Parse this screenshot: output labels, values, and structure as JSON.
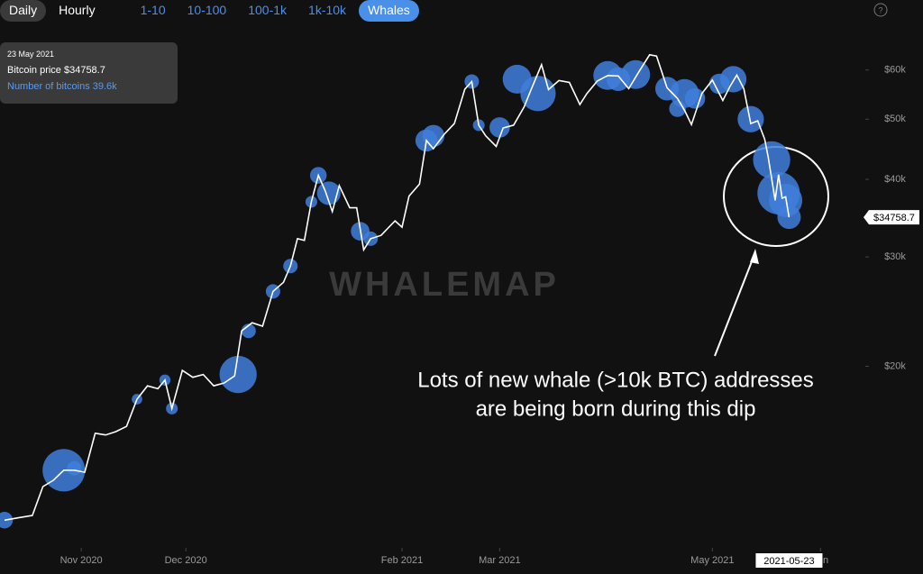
{
  "tabs": [
    {
      "label": "Daily"
    },
    {
      "label": "Hourly"
    },
    {
      "label": "1-10"
    },
    {
      "label": "10-100"
    },
    {
      "label": "100-1k"
    },
    {
      "label": "1k-10k"
    },
    {
      "label": "Whales",
      "active": true
    }
  ],
  "tooltip": {
    "date": "23 May 2021",
    "price_text": "Bitcoin price $34758.7",
    "count_text": "Number of bitcoins 39.6k"
  },
  "chart_data": {
    "type": "line",
    "watermark": "WHALEMAP",
    "annotation": [
      "Lots of new whale (>10k BTC) addresses",
      "are being born during this dip"
    ],
    "cursor_date": "2021-05-23",
    "current_price": {
      "value": 34758.7,
      "label": "$34758.7"
    },
    "log_scale": true,
    "xlim": [
      "2020-10-10",
      "2021-06-03"
    ],
    "xticks": [
      {
        "value": "2020-11-01",
        "label": "Nov 2020"
      },
      {
        "value": "2020-12-01",
        "label": "Dec 2020"
      },
      {
        "value": "2021-02-01",
        "label": "Feb 2021"
      },
      {
        "value": "2021-03-01",
        "label": "Mar 2021"
      },
      {
        "value": "2021-05-01",
        "label": "May 2021"
      },
      {
        "value": "2021-06-01",
        "label": "Jun"
      }
    ],
    "ylim": [
      10300,
      77800
    ],
    "yticks": [
      {
        "value": 20000,
        "label": "$20k"
      },
      {
        "value": 30000,
        "label": "$30k"
      },
      {
        "value": 40000,
        "label": "$40k"
      },
      {
        "value": 50000,
        "label": "$50k"
      },
      {
        "value": 60000,
        "label": "$60k"
      }
    ],
    "x": [
      "2020-10-10",
      "2020-10-14",
      "2020-10-18",
      "2020-10-21",
      "2020-10-24",
      "2020-10-27",
      "2020-10-30",
      "2020-11-02",
      "2020-11-05",
      "2020-11-08",
      "2020-11-11",
      "2020-11-14",
      "2020-11-17",
      "2020-11-20",
      "2020-11-23",
      "2020-11-25",
      "2020-11-27",
      "2020-11-30",
      "2020-12-03",
      "2020-12-06",
      "2020-12-09",
      "2020-12-12",
      "2020-12-15",
      "2020-12-17",
      "2020-12-20",
      "2020-12-23",
      "2020-12-26",
      "2020-12-29",
      "2020-12-31",
      "2021-01-02",
      "2021-01-04",
      "2021-01-06",
      "2021-01-08",
      "2021-01-10",
      "2021-01-12",
      "2021-01-14",
      "2021-01-17",
      "2021-01-19",
      "2021-01-21",
      "2021-01-23",
      "2021-01-26",
      "2021-01-28",
      "2021-01-30",
      "2021-02-01",
      "2021-02-03",
      "2021-02-06",
      "2021-02-08",
      "2021-02-10",
      "2021-02-13",
      "2021-02-16",
      "2021-02-19",
      "2021-02-21",
      "2021-02-23",
      "2021-02-25",
      "2021-02-28",
      "2021-03-02",
      "2021-03-05",
      "2021-03-08",
      "2021-03-10",
      "2021-03-13",
      "2021-03-15",
      "2021-03-18",
      "2021-03-21",
      "2021-03-24",
      "2021-03-26",
      "2021-03-29",
      "2021-04-01",
      "2021-04-04",
      "2021-04-07",
      "2021-04-10",
      "2021-04-13",
      "2021-04-15",
      "2021-04-18",
      "2021-04-21",
      "2021-04-23",
      "2021-04-25",
      "2021-04-28",
      "2021-05-01",
      "2021-05-04",
      "2021-05-06",
      "2021-05-08",
      "2021-05-10",
      "2021-05-12",
      "2021-05-14",
      "2021-05-16",
      "2021-05-17",
      "2021-05-19",
      "2021-05-20",
      "2021-05-21",
      "2021-05-22",
      "2021-05-23"
    ],
    "series": [
      {
        "color": "#ffffff",
        "values": [
          11300,
          11400,
          11500,
          12800,
          13100,
          13600,
          13600,
          13500,
          15600,
          15500,
          15700,
          16000,
          17700,
          18600,
          18400,
          19000,
          17100,
          19700,
          19200,
          19400,
          18600,
          18800,
          19300,
          22800,
          23500,
          23200,
          26400,
          27300,
          29000,
          32100,
          31900,
          36800,
          40600,
          38300,
          35500,
          39100,
          36000,
          36000,
          30800,
          32100,
          32500,
          33400,
          34300,
          33500,
          37600,
          39300,
          46200,
          44800,
          47200,
          49200,
          55900,
          57500,
          48900,
          47000,
          45200,
          48400,
          48900,
          52300,
          55800,
          61200,
          55800,
          57700,
          57300,
          52800,
          55000,
          57600,
          58800,
          58700,
          56000,
          59700,
          63500,
          63200,
          56200,
          54000,
          51700,
          49000,
          55000,
          57800,
          53600,
          56400,
          58900,
          56000,
          49200,
          49700,
          46400,
          43500,
          37000,
          40700,
          37300,
          37500,
          34758.7
        ]
      }
    ],
    "whales": {
      "color": "#3f7fdc",
      "x": [
        "2020-10-10",
        "2020-10-27",
        "2020-10-30",
        "2020-11-17",
        "2020-11-25",
        "2020-11-27",
        "2020-12-16",
        "2020-12-19",
        "2020-12-26",
        "2020-12-31",
        "2021-01-06",
        "2021-01-08",
        "2021-01-11",
        "2021-01-20",
        "2021-01-23",
        "2021-02-08",
        "2021-02-10",
        "2021-02-21",
        "2021-02-23",
        "2021-03-01",
        "2021-03-06",
        "2021-03-12",
        "2021-04-01",
        "2021-04-04",
        "2021-04-09",
        "2021-04-18",
        "2021-04-21",
        "2021-04-23",
        "2021-04-26",
        "2021-05-03",
        "2021-05-07",
        "2021-05-12",
        "2021-05-18",
        "2021-05-20",
        "2021-05-22",
        "2021-05-23"
      ],
      "values": [
        11300,
        13600,
        13700,
        17700,
        19000,
        17100,
        19400,
        22800,
        26400,
        29000,
        36800,
        40600,
        38000,
        33000,
        32100,
        46200,
        47000,
        57500,
        48900,
        48500,
        58000,
        55000,
        58800,
        58000,
        59000,
        56000,
        52000,
        55000,
        54000,
        57000,
        58000,
        50000,
        43000,
        38000,
        37000,
        34758.7
      ],
      "sizes": [
        20000,
        130000,
        15000,
        8000,
        9000,
        10000,
        100000,
        15000,
        15000,
        15000,
        10000,
        20000,
        40000,
        25000,
        15000,
        35000,
        35000,
        15000,
        10000,
        30000,
        60000,
        90000,
        60000,
        40000,
        60000,
        40000,
        20000,
        60000,
        30000,
        30000,
        50000,
        50000,
        100000,
        130000,
        80000,
        39600
      ]
    }
  }
}
